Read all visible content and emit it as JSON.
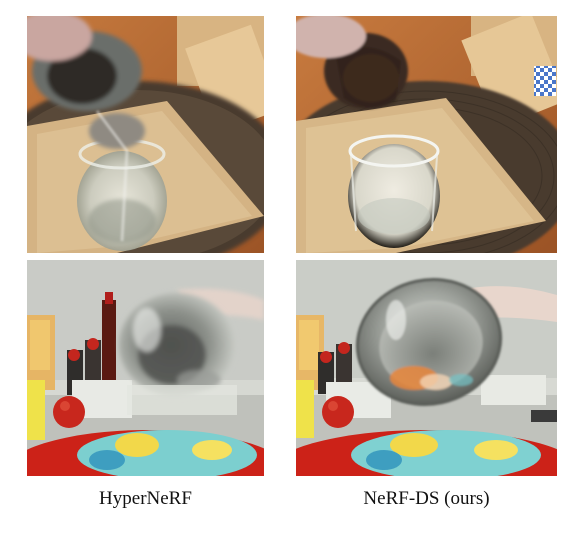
{
  "figure": {
    "columns": [
      {
        "caption": "HyperNeRF"
      },
      {
        "caption": "NeRF-DS (ours)"
      }
    ]
  }
}
